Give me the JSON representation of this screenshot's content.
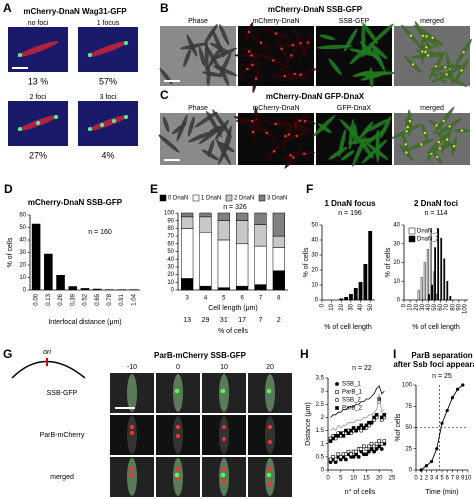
{
  "panels": {
    "A": {
      "label": "A",
      "title": "mCherry-DnaN Wag31-GFP",
      "images": [
        {
          "caption": "no foci",
          "percent": "13 %"
        },
        {
          "caption": "1 focus",
          "percent": "57%"
        },
        {
          "caption": "2 foci",
          "percent": "27%"
        },
        {
          "caption": "3 foci",
          "percent": "4%"
        }
      ]
    },
    "B": {
      "label": "B",
      "title": "mCherry-DnaN SSB-GFP",
      "columns": [
        "Phase",
        "mCherry-DnaN",
        "SSB-GFP",
        "merged"
      ]
    },
    "C": {
      "label": "C",
      "title": "mCherry-DnaN GFP-DnaX",
      "columns": [
        "Phase",
        "mCherry-DnaN",
        "GFP-DnaX",
        "merged"
      ]
    },
    "G": {
      "label": "G",
      "ori": "ori",
      "title": "ParB-mCherry SSB-GFP",
      "times": [
        "-10",
        "0",
        "10",
        "20"
      ],
      "rows": [
        "SSB-GFP",
        "ParB-mCherry",
        "merged"
      ]
    }
  },
  "chart_data": [
    {
      "type": "bar",
      "label": "D",
      "title": "mCherry-DnaN SSB-GFP",
      "annotation": "n = 160",
      "categories": [
        "0.00",
        "0.13",
        "0.26",
        "0.39",
        "0.52",
        "0.65",
        "0.78",
        "0.91",
        "1.04"
      ],
      "values": [
        53,
        29,
        12,
        3,
        1.5,
        1,
        0.5,
        0.5,
        0.5
      ],
      "color": "#000000",
      "ylim": [
        0,
        60
      ],
      "yticks": [
        0,
        10,
        20,
        30,
        40,
        50,
        60
      ],
      "rotate_xticks": true,
      "xlabel": "Interfocal distance (μm)",
      "ylabel": "% of cells"
    },
    {
      "type": "stacked-bar",
      "label": "E",
      "annotation": "n = 326",
      "categories": [
        "3",
        "4",
        "5",
        "6",
        "7",
        "8"
      ],
      "series": [
        {
          "name": "0 DnaN",
          "color": "#000000",
          "values": [
            15,
            5,
            3,
            5,
            7,
            25
          ]
        },
        {
          "name": "1 DnaN",
          "color": "#ffffff",
          "values": [
            65,
            70,
            62,
            55,
            50,
            30
          ]
        },
        {
          "name": "2 DnaN",
          "color": "#c8c8c8",
          "values": [
            15,
            20,
            25,
            30,
            28,
            15
          ]
        },
        {
          "name": "3 DnaN",
          "color": "#808080",
          "values": [
            5,
            5,
            10,
            10,
            15,
            30
          ]
        }
      ],
      "ylim": [
        0,
        100
      ],
      "yticks": [
        0,
        10,
        20,
        30,
        40,
        50,
        60,
        70,
        80,
        90,
        100
      ],
      "xlabel": "Cell length (μm)",
      "category_shares": [
        13,
        29,
        31,
        17,
        7,
        2
      ],
      "category_shares_label": "% of cells"
    },
    {
      "type": "bar",
      "label": "F",
      "title": "1 DnaN focus",
      "annotation": "n = 196",
      "x": [
        20,
        25,
        30,
        35,
        40,
        45,
        50
      ],
      "values": [
        1,
        2,
        4,
        8,
        12,
        24,
        46
      ],
      "color": "#000000",
      "xlim": [
        0,
        55
      ],
      "xticks": [
        0,
        10,
        20,
        30,
        40,
        50
      ],
      "ylim": [
        0,
        50
      ],
      "yticks": [
        0,
        10,
        20,
        30,
        40,
        50
      ],
      "rotate_xticks": true,
      "xlabel": "% of cell length",
      "ylabel": "% of cells"
    },
    {
      "type": "grouped-bar",
      "title": "2 DnaN foci",
      "annotation": "n = 114",
      "x": [
        25,
        30,
        35,
        40,
        45,
        50,
        55,
        60,
        65,
        70,
        75
      ],
      "series": [
        {
          "name": "DnaN_1",
          "color": "#ffffff",
          "values": [
            5,
            12,
            20,
            27,
            38,
            15,
            3,
            0,
            0,
            0,
            0
          ]
        },
        {
          "name": "DnaN_2",
          "color": "#000000",
          "values": [
            0,
            0,
            0,
            3,
            8,
            28,
            38,
            33,
            22,
            10,
            2
          ]
        }
      ],
      "xlim": [
        0,
        105
      ],
      "xticks": [
        0,
        10,
        20,
        30,
        40,
        50,
        60,
        70,
        80,
        90,
        100
      ],
      "ylim": [
        0,
        40
      ],
      "yticks": [
        0,
        10,
        20,
        30,
        40
      ],
      "rotate_xticks": true,
      "xlabel": "% of cell length",
      "ylabel": "% of cells"
    },
    {
      "type": "scatter",
      "label": "H",
      "annotation": "n = 22",
      "x": [
        1,
        2,
        3,
        4,
        5,
        6,
        7,
        8,
        9,
        10,
        11,
        12,
        13,
        14,
        15,
        16,
        17,
        18,
        19,
        20,
        21,
        22
      ],
      "series": [
        {
          "name": "SSB_1",
          "color": "#000000",
          "marker": "circle",
          "filled": true,
          "values": [
            0.3,
            0.4,
            0.3,
            0.5,
            0.4,
            0.5,
            0.4,
            0.6,
            0.5,
            0.5,
            0.6,
            0.5,
            0.7,
            0.6,
            0.6,
            0.7,
            0.8,
            0.7,
            0.8,
            0.9,
            0.8,
            1.0
          ]
        },
        {
          "name": "ParB_1",
          "color": "#000000",
          "marker": "square",
          "filled": false,
          "values": [
            0.4,
            0.5,
            0.4,
            0.6,
            0.5,
            0.6,
            0.6,
            0.7,
            0.6,
            0.7,
            0.7,
            0.8,
            0.8,
            0.9,
            0.8,
            0.9,
            1.0,
            0.9,
            1.0,
            1.1,
            1.0,
            1.1
          ]
        },
        {
          "name": "SSB_2",
          "color": "#000000",
          "marker": "circle",
          "filled": false,
          "values": [
            1.2,
            1.3,
            1.2,
            1.4,
            1.3,
            1.4,
            1.4,
            1.5,
            1.4,
            1.5,
            1.5,
            1.6,
            1.5,
            1.6,
            1.6,
            1.7,
            1.8,
            1.9,
            2.0,
            2.6,
            1.9,
            2.0
          ]
        },
        {
          "name": "ParB_2",
          "color": "#000000",
          "marker": "square",
          "filled": true,
          "values": [
            1.1,
            1.2,
            1.3,
            1.3,
            1.4,
            1.3,
            1.5,
            1.4,
            1.5,
            1.6,
            1.5,
            1.6,
            1.7,
            1.6,
            1.7,
            1.8,
            1.8,
            2.0,
            2.1,
            2.7,
            2.0,
            2.1
          ]
        },
        {
          "color": "#000000",
          "marker": "line",
          "values": [
            2.0,
            2.1,
            2.1,
            2.2,
            2.2,
            2.3,
            2.3,
            2.4,
            2.4,
            2.4,
            2.5,
            2.5,
            2.6,
            2.6,
            2.7,
            2.7,
            2.8,
            2.9,
            3.1,
            3.2,
            2.9,
            3.0
          ]
        },
        {
          "color": "#999999",
          "marker": "line",
          "values": [
            1.5,
            1.6,
            1.5,
            1.7,
            1.6,
            1.7,
            1.7,
            1.8,
            1.8,
            1.8,
            1.9,
            1.9,
            1.9,
            2.0,
            2.0,
            2.1,
            2.1,
            2.2,
            2.3,
            2.9,
            2.2,
            2.3
          ]
        }
      ],
      "xlim": [
        0,
        25
      ],
      "xticks": [
        0,
        5,
        10,
        15,
        20,
        25
      ],
      "ylim": [
        0,
        3.5
      ],
      "yticks": [
        0,
        0.5,
        1,
        1.5,
        2,
        2.5,
        3,
        3.5
      ],
      "xlabel": "n° of cells",
      "ylabel": "Distance (μm)"
    },
    {
      "type": "line",
      "label": "I",
      "title": "ParB separation",
      "subtitle": "after Ssb foci appearance",
      "annotation": "n = 25",
      "x": [
        1,
        2,
        3,
        4,
        5,
        6,
        7,
        8,
        9
      ],
      "values": [
        0,
        5,
        10,
        25,
        55,
        70,
        85,
        95,
        100
      ],
      "color": "#000000",
      "reference_lines": {
        "x": 4.5,
        "y": 50
      },
      "xlim": [
        0,
        10
      ],
      "xticks": [
        0,
        1,
        2,
        3,
        4,
        5,
        6,
        7,
        8,
        9,
        10
      ],
      "ylim": [
        0,
        100
      ],
      "yticks": [
        0,
        25,
        50,
        75,
        100
      ],
      "xlabel": "Time (min)",
      "ylabel": "%of cells"
    }
  ]
}
